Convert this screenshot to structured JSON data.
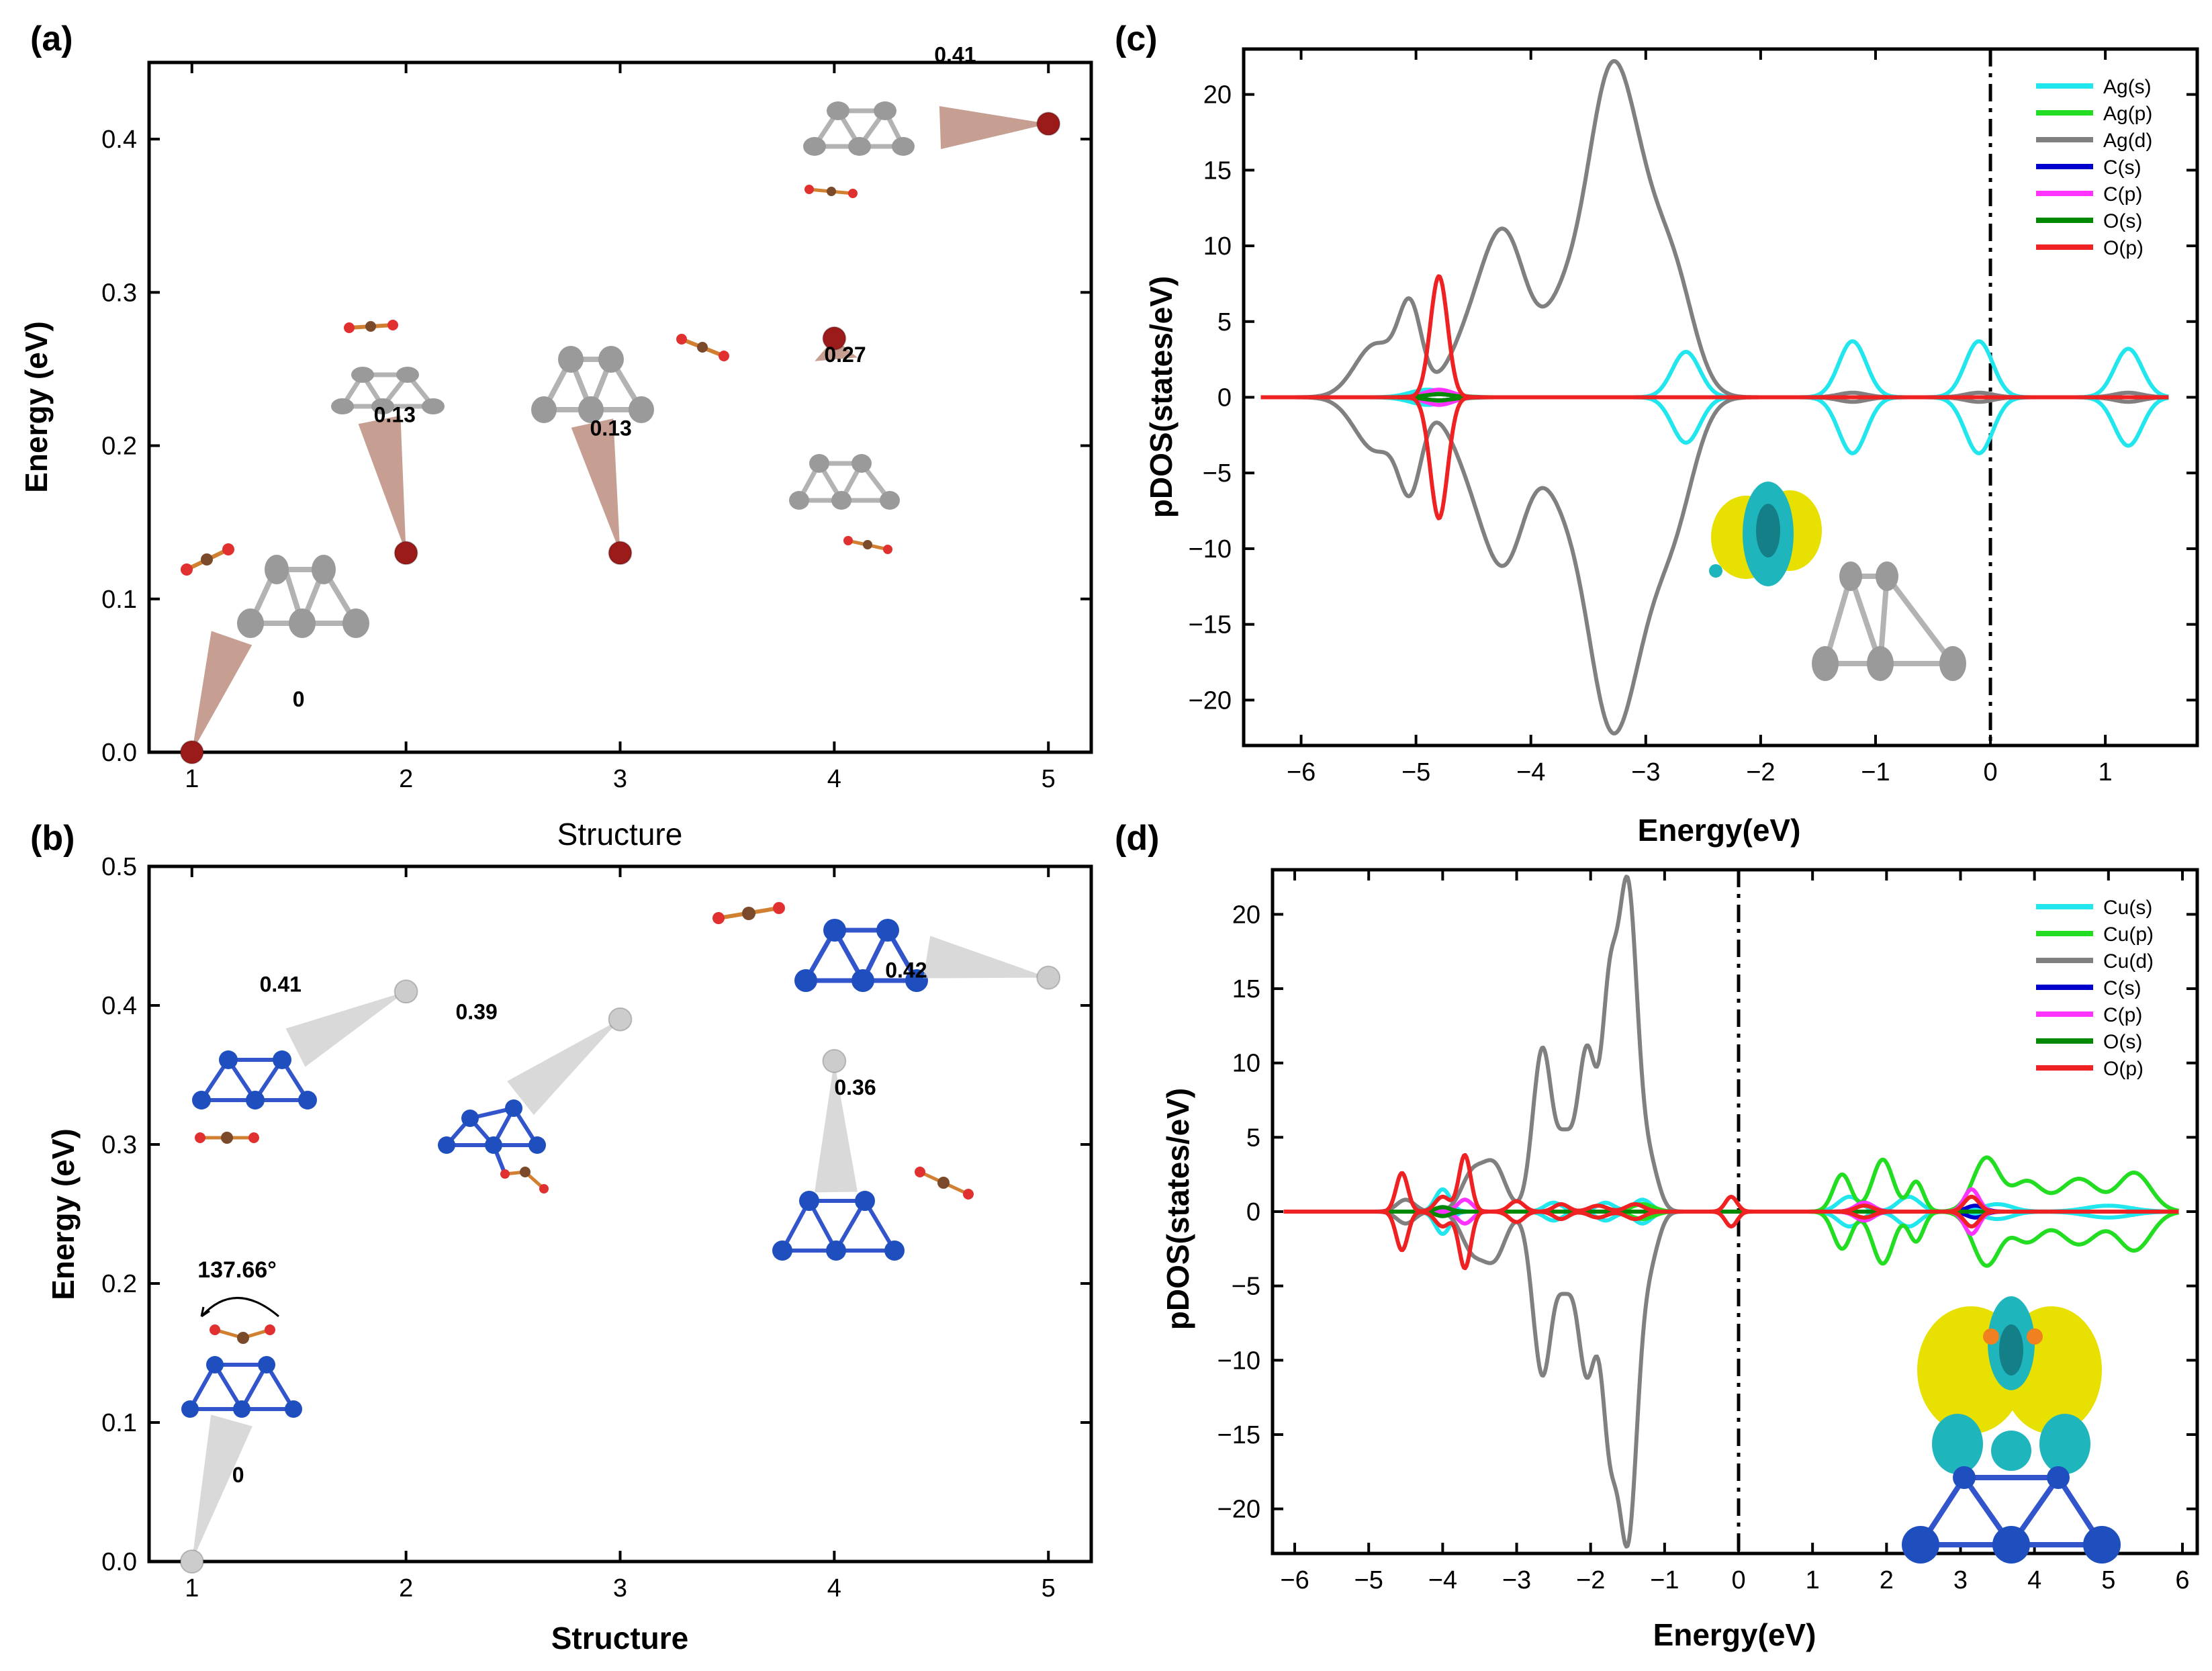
{
  "chart_data": [
    {
      "panel": "(a)",
      "type": "scatter",
      "title": "",
      "xlabel": "Structure",
      "ylabel": "Energy (eV)",
      "xlim": [
        0.8,
        5.2
      ],
      "ylim": [
        0,
        0.45
      ],
      "x_ticks": [
        1,
        2,
        3,
        4,
        5
      ],
      "y_ticks": [
        0.0,
        0.1,
        0.2,
        0.3,
        0.4
      ],
      "y_tick_labels": [
        "0.0",
        "0.1",
        "0.2",
        "0.3",
        "0.4"
      ],
      "point_color": "#9b1b1b",
      "pointer_color": "#a86a58",
      "points": [
        {
          "x": 1,
          "y": 0.0,
          "label": "0"
        },
        {
          "x": 2,
          "y": 0.13,
          "label": "0.13"
        },
        {
          "x": 3,
          "y": 0.13,
          "label": "0.13"
        },
        {
          "x": 4,
          "y": 0.27,
          "label": "0.27"
        },
        {
          "x": 5,
          "y": 0.41,
          "label": "0.41"
        }
      ]
    },
    {
      "panel": "(b)",
      "type": "scatter",
      "title": "",
      "xlabel": "Structure",
      "ylabel": "Energy (eV)",
      "xlim": [
        0.8,
        5.2
      ],
      "ylim": [
        0,
        0.5
      ],
      "x_ticks": [
        1,
        2,
        3,
        4,
        5
      ],
      "y_ticks": [
        0.0,
        0.1,
        0.2,
        0.3,
        0.4,
        0.5
      ],
      "y_tick_labels": [
        "0.0",
        "0.1",
        "0.2",
        "0.3",
        "0.4",
        "0.5"
      ],
      "point_color": "#cccccc",
      "pointer_color": "#c4c4c4",
      "annotation": "137.66°",
      "points": [
        {
          "x": 1,
          "y": 0.0,
          "label": "0"
        },
        {
          "x": 2,
          "y": 0.41,
          "label": "0.41"
        },
        {
          "x": 3,
          "y": 0.39,
          "label": "0.39"
        },
        {
          "x": 4,
          "y": 0.36,
          "label": "0.36"
        },
        {
          "x": 5,
          "y": 0.42,
          "label": "0.42"
        }
      ]
    },
    {
      "panel": "(c)",
      "type": "line",
      "title": "",
      "xlabel": "Energy(eV)",
      "ylabel": "pDOS(states/eV)",
      "xlim": [
        -6.5,
        1.8
      ],
      "ylim": [
        -23,
        23
      ],
      "x_ticks": [
        -6,
        -5,
        -4,
        -3,
        -2,
        -1,
        0,
        1
      ],
      "y_ticks": [
        -20,
        -15,
        -10,
        -5,
        0,
        5,
        10,
        15,
        20
      ],
      "fermi_level": 0,
      "legend_position": "top-right",
      "series": [
        {
          "name": "Ag(s)",
          "color": "#22e6ee",
          "peaks": [
            [
              -4.9,
              0.5,
              0.15
            ],
            [
              -2.65,
              3.0,
              0.12
            ],
            [
              -1.2,
              3.7,
              0.12
            ],
            [
              -0.1,
              3.7,
              0.12
            ],
            [
              1.2,
              3.2,
              0.12
            ]
          ]
        },
        {
          "name": "Ag(p)",
          "color": "#22dd22",
          "peaks": [
            [
              -4.8,
              0.3,
              0.15
            ]
          ]
        },
        {
          "name": "Ag(d)",
          "color": "#808080",
          "peaks": [
            [
              -5.35,
              3.5,
              0.18
            ],
            [
              -5.05,
              5.5,
              0.1
            ],
            [
              -4.45,
              5.0,
              0.22
            ],
            [
              -4.2,
              8.0,
              0.18
            ],
            [
              -3.7,
              6.0,
              0.2
            ],
            [
              -3.35,
              14.5,
              0.18
            ],
            [
              -3.1,
              12.0,
              0.2
            ],
            [
              -2.75,
              7.0,
              0.18
            ],
            [
              -1.2,
              0.3,
              0.12
            ],
            [
              -0.1,
              0.3,
              0.12
            ],
            [
              1.2,
              0.3,
              0.12
            ]
          ]
        },
        {
          "name": "C(s)",
          "color": "#0000cc",
          "peaks": [
            [
              -4.8,
              0.2,
              0.12
            ]
          ]
        },
        {
          "name": "C(p)",
          "color": "#ff33ff",
          "peaks": [
            [
              -4.8,
              0.5,
              0.12
            ]
          ]
        },
        {
          "name": "O(s)",
          "color": "#008800",
          "peaks": [
            [
              -4.8,
              0.2,
              0.12
            ]
          ]
        },
        {
          "name": "O(p)",
          "color": "#ee2222",
          "peaks": [
            [
              -4.8,
              8.0,
              0.075
            ]
          ]
        }
      ]
    },
    {
      "panel": "(d)",
      "type": "line",
      "title": "",
      "xlabel": "Energy(eV)",
      "ylabel": "pDOS(states/eV)",
      "xlim": [
        -6.3,
        6.2
      ],
      "ylim": [
        -23,
        23
      ],
      "x_ticks": [
        -6,
        -5,
        -4,
        -3,
        -2,
        -1,
        0,
        1,
        2,
        3,
        4,
        5,
        6
      ],
      "y_ticks": [
        -20,
        -15,
        -10,
        -5,
        0,
        5,
        10,
        15,
        20
      ],
      "fermi_level": 0,
      "legend_position": "top-right",
      "series": [
        {
          "name": "Cu(s)",
          "color": "#22e6ee",
          "peaks": [
            [
              -4.0,
              1.5,
              0.1
            ],
            [
              -2.5,
              0.6,
              0.12
            ],
            [
              -1.8,
              0.6,
              0.12
            ],
            [
              -1.3,
              0.8,
              0.12
            ],
            [
              1.5,
              1.0,
              0.15
            ],
            [
              2.3,
              1.0,
              0.15
            ],
            [
              3.5,
              0.5,
              0.2
            ],
            [
              5.0,
              0.4,
              0.3
            ]
          ]
        },
        {
          "name": "Cu(p)",
          "color": "#22dd22",
          "peaks": [
            [
              -1.3,
              0.5,
              0.15
            ],
            [
              1.4,
              2.5,
              0.12
            ],
            [
              1.95,
              3.5,
              0.14
            ],
            [
              2.4,
              2.0,
              0.1
            ],
            [
              3.35,
              3.6,
              0.18
            ],
            [
              3.9,
              2.0,
              0.2
            ],
            [
              4.6,
              2.2,
              0.25
            ],
            [
              5.35,
              2.6,
              0.22
            ]
          ]
        },
        {
          "name": "Cu(d)",
          "color": "#808080",
          "peaks": [
            [
              -4.5,
              0.8,
              0.12
            ],
            [
              -3.6,
              2.5,
              0.15
            ],
            [
              -3.3,
              3.0,
              0.15
            ],
            [
              -2.65,
              11.0,
              0.13
            ],
            [
              -2.35,
              4.0,
              0.1
            ],
            [
              -2.05,
              11.0,
              0.13
            ],
            [
              -1.75,
              12.5,
              0.1
            ],
            [
              -1.5,
              21.8,
              0.13
            ],
            [
              -1.2,
              3.0,
              0.12
            ]
          ]
        },
        {
          "name": "C(s)",
          "color": "#0000cc",
          "peaks": [
            [
              -4.0,
              0.3,
              0.1
            ],
            [
              1.7,
              0.6,
              0.12
            ],
            [
              3.2,
              0.4,
              0.12
            ]
          ]
        },
        {
          "name": "C(p)",
          "color": "#ff33ff",
          "peaks": [
            [
              -3.7,
              0.8,
              0.1
            ],
            [
              1.7,
              0.6,
              0.12
            ],
            [
              3.15,
              1.5,
              0.1
            ]
          ]
        },
        {
          "name": "O(s)",
          "color": "#008800",
          "peaks": [
            [
              -4.0,
              0.3,
              0.1
            ]
          ]
        },
        {
          "name": "O(p)",
          "color": "#ee2222",
          "peaks": [
            [
              -4.55,
              2.6,
              0.08
            ],
            [
              -4.0,
              1.0,
              0.1
            ],
            [
              -3.7,
              3.8,
              0.08
            ],
            [
              -3.0,
              0.7,
              0.1
            ],
            [
              -2.4,
              0.5,
              0.1
            ],
            [
              -1.9,
              0.4,
              0.12
            ],
            [
              -1.4,
              0.5,
              0.12
            ],
            [
              -0.1,
              1.0,
              0.08
            ],
            [
              1.7,
              0.4,
              0.12
            ],
            [
              3.15,
              1.0,
              0.1
            ]
          ]
        }
      ]
    }
  ]
}
